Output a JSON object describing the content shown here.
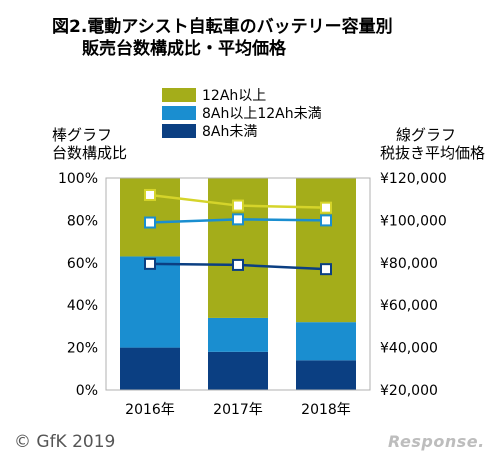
{
  "title": {
    "line1": "図2.電動アシスト自転車のバッテリー容量別",
    "line2": "販売台数構成比・平均価格"
  },
  "axis_titles": {
    "left_line1": "棒グラフ",
    "left_line2": "台数構成比",
    "right_line1": "線グラフ",
    "right_line2": "税抜き平均価格"
  },
  "footer": {
    "copyright": "© GfK 2019",
    "brand": "Response."
  },
  "colors": {
    "over12": "#a4ad1a",
    "mid": "#1a8ed0",
    "under8": "#0b3f82",
    "over12_line": "#d5d42a",
    "mid_line": "#1a8ed0",
    "under8_line": "#0b3f82"
  },
  "chart_data": {
    "type": "bar",
    "categories": [
      "2016年",
      "2017年",
      "2018年"
    ],
    "series": [
      {
        "name": "12Ah以上",
        "values": [
          37,
          66,
          68
        ],
        "color": "#a4ad1a"
      },
      {
        "name": "8Ah以上12Ah未満",
        "values": [
          43,
          16,
          18
        ],
        "color": "#1a8ed0"
      },
      {
        "name": "8Ah未満",
        "values": [
          20,
          18,
          14
        ],
        "color": "#0b3f82"
      }
    ],
    "stacked": true,
    "ylim": [
      0,
      100
    ],
    "yticks": [
      "0%",
      "20%",
      "40%",
      "60%",
      "80%",
      "100%"
    ],
    "lines": [
      {
        "name": "12Ah以上",
        "values": [
          112000,
          107000,
          106000
        ],
        "color": "#d5d42a"
      },
      {
        "name": "8Ah以上12Ah未満",
        "values": [
          99000,
          100500,
          100000
        ],
        "color": "#1a8ed0"
      },
      {
        "name": "8Ah未満",
        "values": [
          79500,
          79000,
          77000
        ],
        "color": "#0b3f82"
      }
    ],
    "y2lim": [
      20000,
      120000
    ],
    "y2ticks": [
      "¥20,000",
      "¥40,000",
      "¥60,000",
      "¥80,000",
      "¥100,000",
      "¥120,000"
    ],
    "legend": "top"
  }
}
